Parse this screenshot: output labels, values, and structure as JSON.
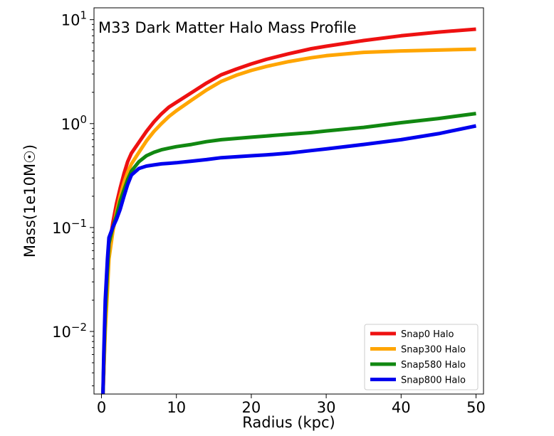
{
  "chart_data": {
    "type": "line",
    "title": "M33 Dark Matter Halo Mass Profile",
    "xlabel": "Radius (kpc)",
    "ylabel": "Mass(1e10M☉)",
    "y_scale": "log",
    "xlim": [
      -1.0,
      51.0
    ],
    "ylim": [
      0.0025,
      13.0
    ],
    "x_ticks": [
      0,
      10,
      20,
      30,
      40,
      50
    ],
    "y_ticks": [
      {
        "value": 0.01,
        "base": "10",
        "exp": "−2"
      },
      {
        "value": 0.1,
        "base": "10",
        "exp": "−1"
      },
      {
        "value": 1,
        "base": "10",
        "exp": "0"
      },
      {
        "value": 10,
        "base": "10",
        "exp": "1"
      }
    ],
    "legend_position": "lower-right",
    "grid": false,
    "series": [
      {
        "name": "Snap0 Halo",
        "color": "#ee1111",
        "x": [
          0.2,
          0.3,
          0.5,
          0.8,
          1,
          1.5,
          2,
          2.5,
          3,
          3.5,
          4,
          5,
          6,
          7,
          8,
          9,
          10,
          12,
          14,
          16,
          18,
          20,
          22,
          25,
          28,
          30,
          35,
          40,
          45,
          50
        ],
        "y": [
          0.0025,
          0.004,
          0.012,
          0.03,
          0.06,
          0.11,
          0.17,
          0.24,
          0.33,
          0.43,
          0.52,
          0.66,
          0.84,
          1.04,
          1.24,
          1.44,
          1.6,
          1.98,
          2.45,
          2.95,
          3.35,
          3.75,
          4.15,
          4.7,
          5.25,
          5.55,
          6.3,
          7.0,
          7.6,
          8.1
        ]
      },
      {
        "name": "Snap300 Halo",
        "color": "#ffa500",
        "x": [
          0.2,
          0.3,
          0.5,
          0.8,
          1,
          1.5,
          2,
          2.5,
          3,
          3.5,
          4,
          5,
          6,
          7,
          8,
          9,
          10,
          12,
          14,
          16,
          18,
          20,
          22,
          25,
          28,
          30,
          35,
          40,
          45,
          50
        ],
        "y": [
          0.0025,
          0.004,
          0.01,
          0.025,
          0.05,
          0.09,
          0.14,
          0.2,
          0.27,
          0.34,
          0.41,
          0.53,
          0.68,
          0.84,
          1.0,
          1.17,
          1.33,
          1.68,
          2.1,
          2.55,
          2.92,
          3.25,
          3.55,
          3.95,
          4.3,
          4.5,
          4.85,
          5.0,
          5.1,
          5.2
        ]
      },
      {
        "name": "Snap580 Halo",
        "color": "#118811",
        "x": [
          0.2,
          0.3,
          0.5,
          0.8,
          1,
          1.5,
          2,
          2.5,
          3,
          3.5,
          4,
          5,
          6,
          7,
          8,
          9,
          10,
          12,
          14,
          16,
          18,
          20,
          22,
          25,
          28,
          30,
          35,
          40,
          45,
          50
        ],
        "y": [
          0.0025,
          0.005,
          0.015,
          0.04,
          0.07,
          0.1,
          0.13,
          0.18,
          0.23,
          0.29,
          0.35,
          0.43,
          0.49,
          0.53,
          0.56,
          0.58,
          0.6,
          0.63,
          0.67,
          0.7,
          0.72,
          0.74,
          0.76,
          0.79,
          0.82,
          0.85,
          0.92,
          1.02,
          1.12,
          1.25
        ]
      },
      {
        "name": "Snap800 Halo",
        "color": "#0000ee",
        "x": [
          0.2,
          0.3,
          0.5,
          0.8,
          1,
          1.5,
          2,
          2.5,
          3,
          3.5,
          4,
          5,
          6,
          7,
          8,
          9,
          10,
          12,
          14,
          16,
          18,
          20,
          22,
          25,
          28,
          30,
          35,
          40,
          45,
          50
        ],
        "y": [
          0.0025,
          0.006,
          0.02,
          0.05,
          0.08,
          0.1,
          0.12,
          0.15,
          0.2,
          0.26,
          0.32,
          0.37,
          0.39,
          0.4,
          0.41,
          0.415,
          0.42,
          0.435,
          0.45,
          0.47,
          0.48,
          0.49,
          0.5,
          0.52,
          0.55,
          0.57,
          0.63,
          0.7,
          0.8,
          0.95
        ]
      }
    ]
  }
}
